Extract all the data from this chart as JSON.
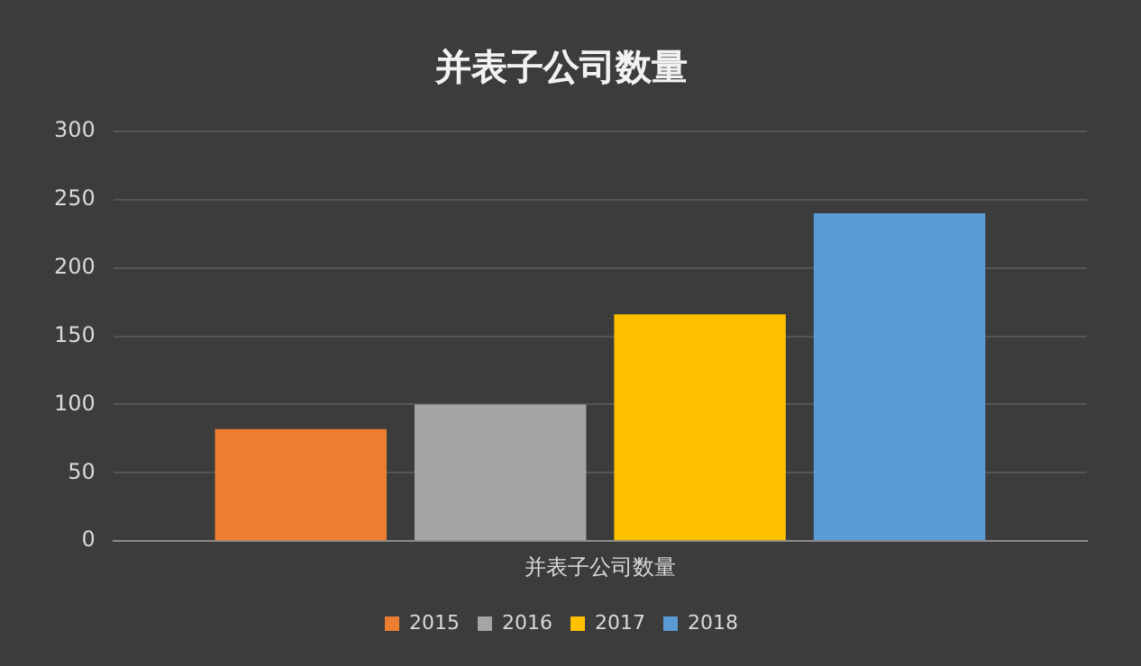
{
  "chart_data": {
    "type": "bar",
    "title": "并表子公司数量",
    "categories": [
      "并表子公司数量"
    ],
    "series": [
      {
        "name": "2015",
        "color": "#ed7d31",
        "values": [
          82
        ]
      },
      {
        "name": "2016",
        "color": "#a5a5a5",
        "values": [
          100
        ]
      },
      {
        "name": "2017",
        "color": "#ffc000",
        "values": [
          166
        ]
      },
      {
        "name": "2018",
        "color": "#5b9bd5",
        "values": [
          240
        ]
      }
    ],
    "ylim": [
      0,
      300
    ],
    "yticks": [
      0,
      50,
      100,
      150,
      200,
      250,
      300
    ],
    "grid": "y",
    "legend": "bottom"
  }
}
